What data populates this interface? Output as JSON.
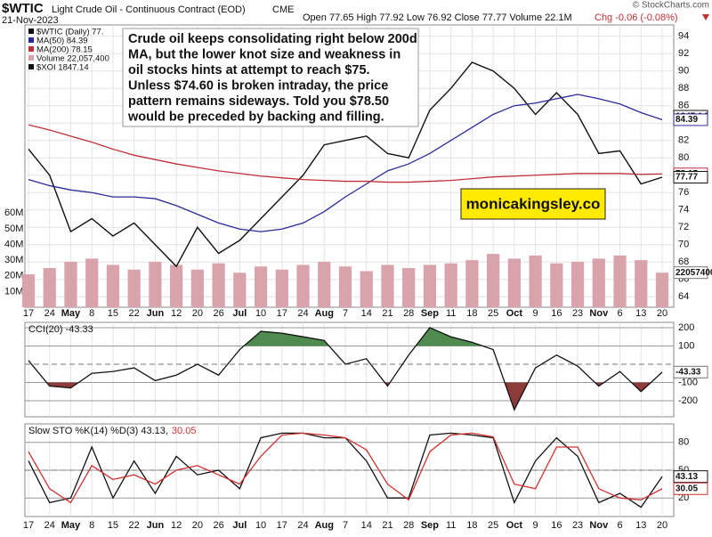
{
  "header": {
    "symbol": "$WTIC",
    "name": "Light Crude Oil - Continuous Contract (EOD)",
    "exchange": "CME",
    "date": "21-Nov-2023",
    "ohlc": "Open 77.65  High 77.92  Low 76.92  Close 77.77  Volume 22.1M",
    "change": "Chg -0.06 (-0.08%)",
    "source": "© StockCharts.com"
  },
  "annotation": [
    "Crude oil keeps consolidating right below 200d",
    "MA, but the lower knot size and weakness in",
    "oil stocks hints at attempt to reach $75.",
    "Unless $74.60 is broken intraday, the price",
    "pattern remains sideways. Told you $78.50",
    "would be preceded by backing and filling."
  ],
  "watermark": "monicakingsley.co",
  "chart_data": [
    {
      "type": "line",
      "categories": [
        "17",
        "24",
        "May",
        "8",
        "15",
        "22",
        "Jun",
        "12",
        "20",
        "26",
        "Jul",
        "10",
        "17",
        "24",
        "Aug",
        "7",
        "14",
        "21",
        "28",
        "Sep",
        "11",
        "18",
        "25",
        "Oct",
        "9",
        "16",
        "23",
        "Nov",
        "6",
        "13",
        "20"
      ],
      "series": [
        {
          "name": "$WTIC (Daily) 77.",
          "color": "#111111",
          "values": [
            81,
            78,
            71.5,
            73,
            71,
            72.5,
            70,
            67.5,
            72,
            69,
            70.5,
            73,
            75.5,
            78,
            81.5,
            82,
            82.5,
            80.5,
            80,
            85.5,
            88,
            91,
            90,
            88,
            85,
            87.5,
            85,
            80.5,
            80.8,
            77,
            77.77
          ]
        },
        {
          "name": "MA(50) 84.39",
          "color": "#2a2a9a",
          "values": [
            77.5,
            76.8,
            76.3,
            76,
            75.5,
            75.5,
            75.3,
            74.5,
            73.5,
            72.5,
            71.8,
            71.5,
            71.8,
            72.5,
            73.8,
            75.5,
            77,
            78.5,
            79.3,
            80.5,
            82,
            83.5,
            85,
            86,
            86.3,
            86.8,
            87.3,
            86.8,
            86.2,
            85.2,
            84.39
          ]
        },
        {
          "name": "MA(200) 78.15",
          "color": "#c0303a",
          "values": [
            83.8,
            83.2,
            82.5,
            81.8,
            81,
            80.3,
            79.8,
            79.3,
            78.9,
            78.5,
            78.2,
            77.9,
            77.7,
            77.5,
            77.4,
            77.3,
            77.3,
            77.2,
            77.2,
            77.3,
            77.4,
            77.6,
            77.8,
            77.9,
            78,
            78.1,
            78.2,
            78.2,
            78.2,
            78.1,
            78.15
          ]
        },
        {
          "name": "Volume 22,057,400",
          "color": "#d9a3ab",
          "axis": "y2",
          "values": [
            21000000,
            25000000,
            29000000,
            31000000,
            27000000,
            24000000,
            29000000,
            27000000,
            24000000,
            28000000,
            22000000,
            26000000,
            24000000,
            27000000,
            29000000,
            26000000,
            23000000,
            27000000,
            25000000,
            27000000,
            28000000,
            30000000,
            34000000,
            31000000,
            33000000,
            28000000,
            29000000,
            31000000,
            33000000,
            30000000,
            22057400
          ]
        }
      ],
      "legend_note": "$XOI 1847.14",
      "xoi_tag": "1847.14",
      "ylim": [
        62.8,
        95.3
      ],
      "yticks": [
        64,
        66,
        68,
        70,
        72,
        74,
        76,
        78,
        80,
        82,
        84,
        86,
        88,
        90,
        92,
        94
      ],
      "y2lim": [
        0,
        180000000
      ],
      "y2ticks": [
        {
          "value": 10000000,
          "label": "10M"
        },
        {
          "value": 20000000,
          "label": "20M"
        },
        {
          "value": 30000000,
          "label": "30M"
        },
        {
          "value": 40000000,
          "label": "40M"
        },
        {
          "value": 50000000,
          "label": "50M"
        },
        {
          "value": 60000000,
          "label": "60M"
        }
      ],
      "tags": [
        {
          "value": 84.39,
          "color": "#2a2a9a"
        },
        {
          "value": 78.15,
          "color": "#c0303a"
        },
        {
          "value": 77.77,
          "color": "#111111"
        },
        {
          "value": 22057400,
          "color": "#777777",
          "axis": "y2"
        }
      ],
      "grid": true
    },
    {
      "type": "cci",
      "label": "CCI(20) -43.33",
      "series": [
        {
          "color": "#111111",
          "values": [
            20,
            -120,
            -130,
            -50,
            -40,
            -20,
            -90,
            -60,
            0,
            -60,
            80,
            180,
            170,
            150,
            130,
            0,
            30,
            -120,
            50,
            200,
            150,
            120,
            80,
            -250,
            -20,
            50,
            -10,
            -120,
            -40,
            -150,
            -43.33
          ]
        }
      ],
      "ylim": [
        -288,
        229
      ],
      "yticks": [
        200,
        100,
        -100,
        -200
      ],
      "zero_line": 0,
      "fill_above": 100,
      "fill_below": -100,
      "above_color": "#4f8a4f",
      "below_color": "#8e3b3b",
      "tags": [
        {
          "value": -43.33,
          "color": "#777777"
        }
      ]
    },
    {
      "type": "sto",
      "label": "Slow STO %K(14) %D(3) 43.13,",
      "label_d": "30.05",
      "series": [
        {
          "color": "#111111",
          "values": [
            60,
            15,
            20,
            75,
            20,
            60,
            25,
            65,
            45,
            50,
            30,
            85,
            90,
            90,
            85,
            85,
            60,
            20,
            20,
            88,
            90,
            88,
            85,
            15,
            60,
            85,
            65,
            15,
            25,
            10,
            43.13
          ]
        },
        {
          "color": "#d03030",
          "values": [
            70,
            30,
            15,
            55,
            40,
            45,
            35,
            50,
            55,
            45,
            35,
            65,
            88,
            90,
            88,
            85,
            72,
            35,
            18,
            70,
            88,
            90,
            86,
            35,
            30,
            75,
            75,
            30,
            20,
            18,
            30.05
          ]
        }
      ],
      "ylim": [
        0,
        100
      ],
      "yticks": [
        80,
        50,
        20
      ],
      "mid_line": 50,
      "tags": [
        {
          "value": 43.13,
          "color": "#111111"
        },
        {
          "value": 30.05,
          "color": "#d03030"
        }
      ]
    }
  ]
}
